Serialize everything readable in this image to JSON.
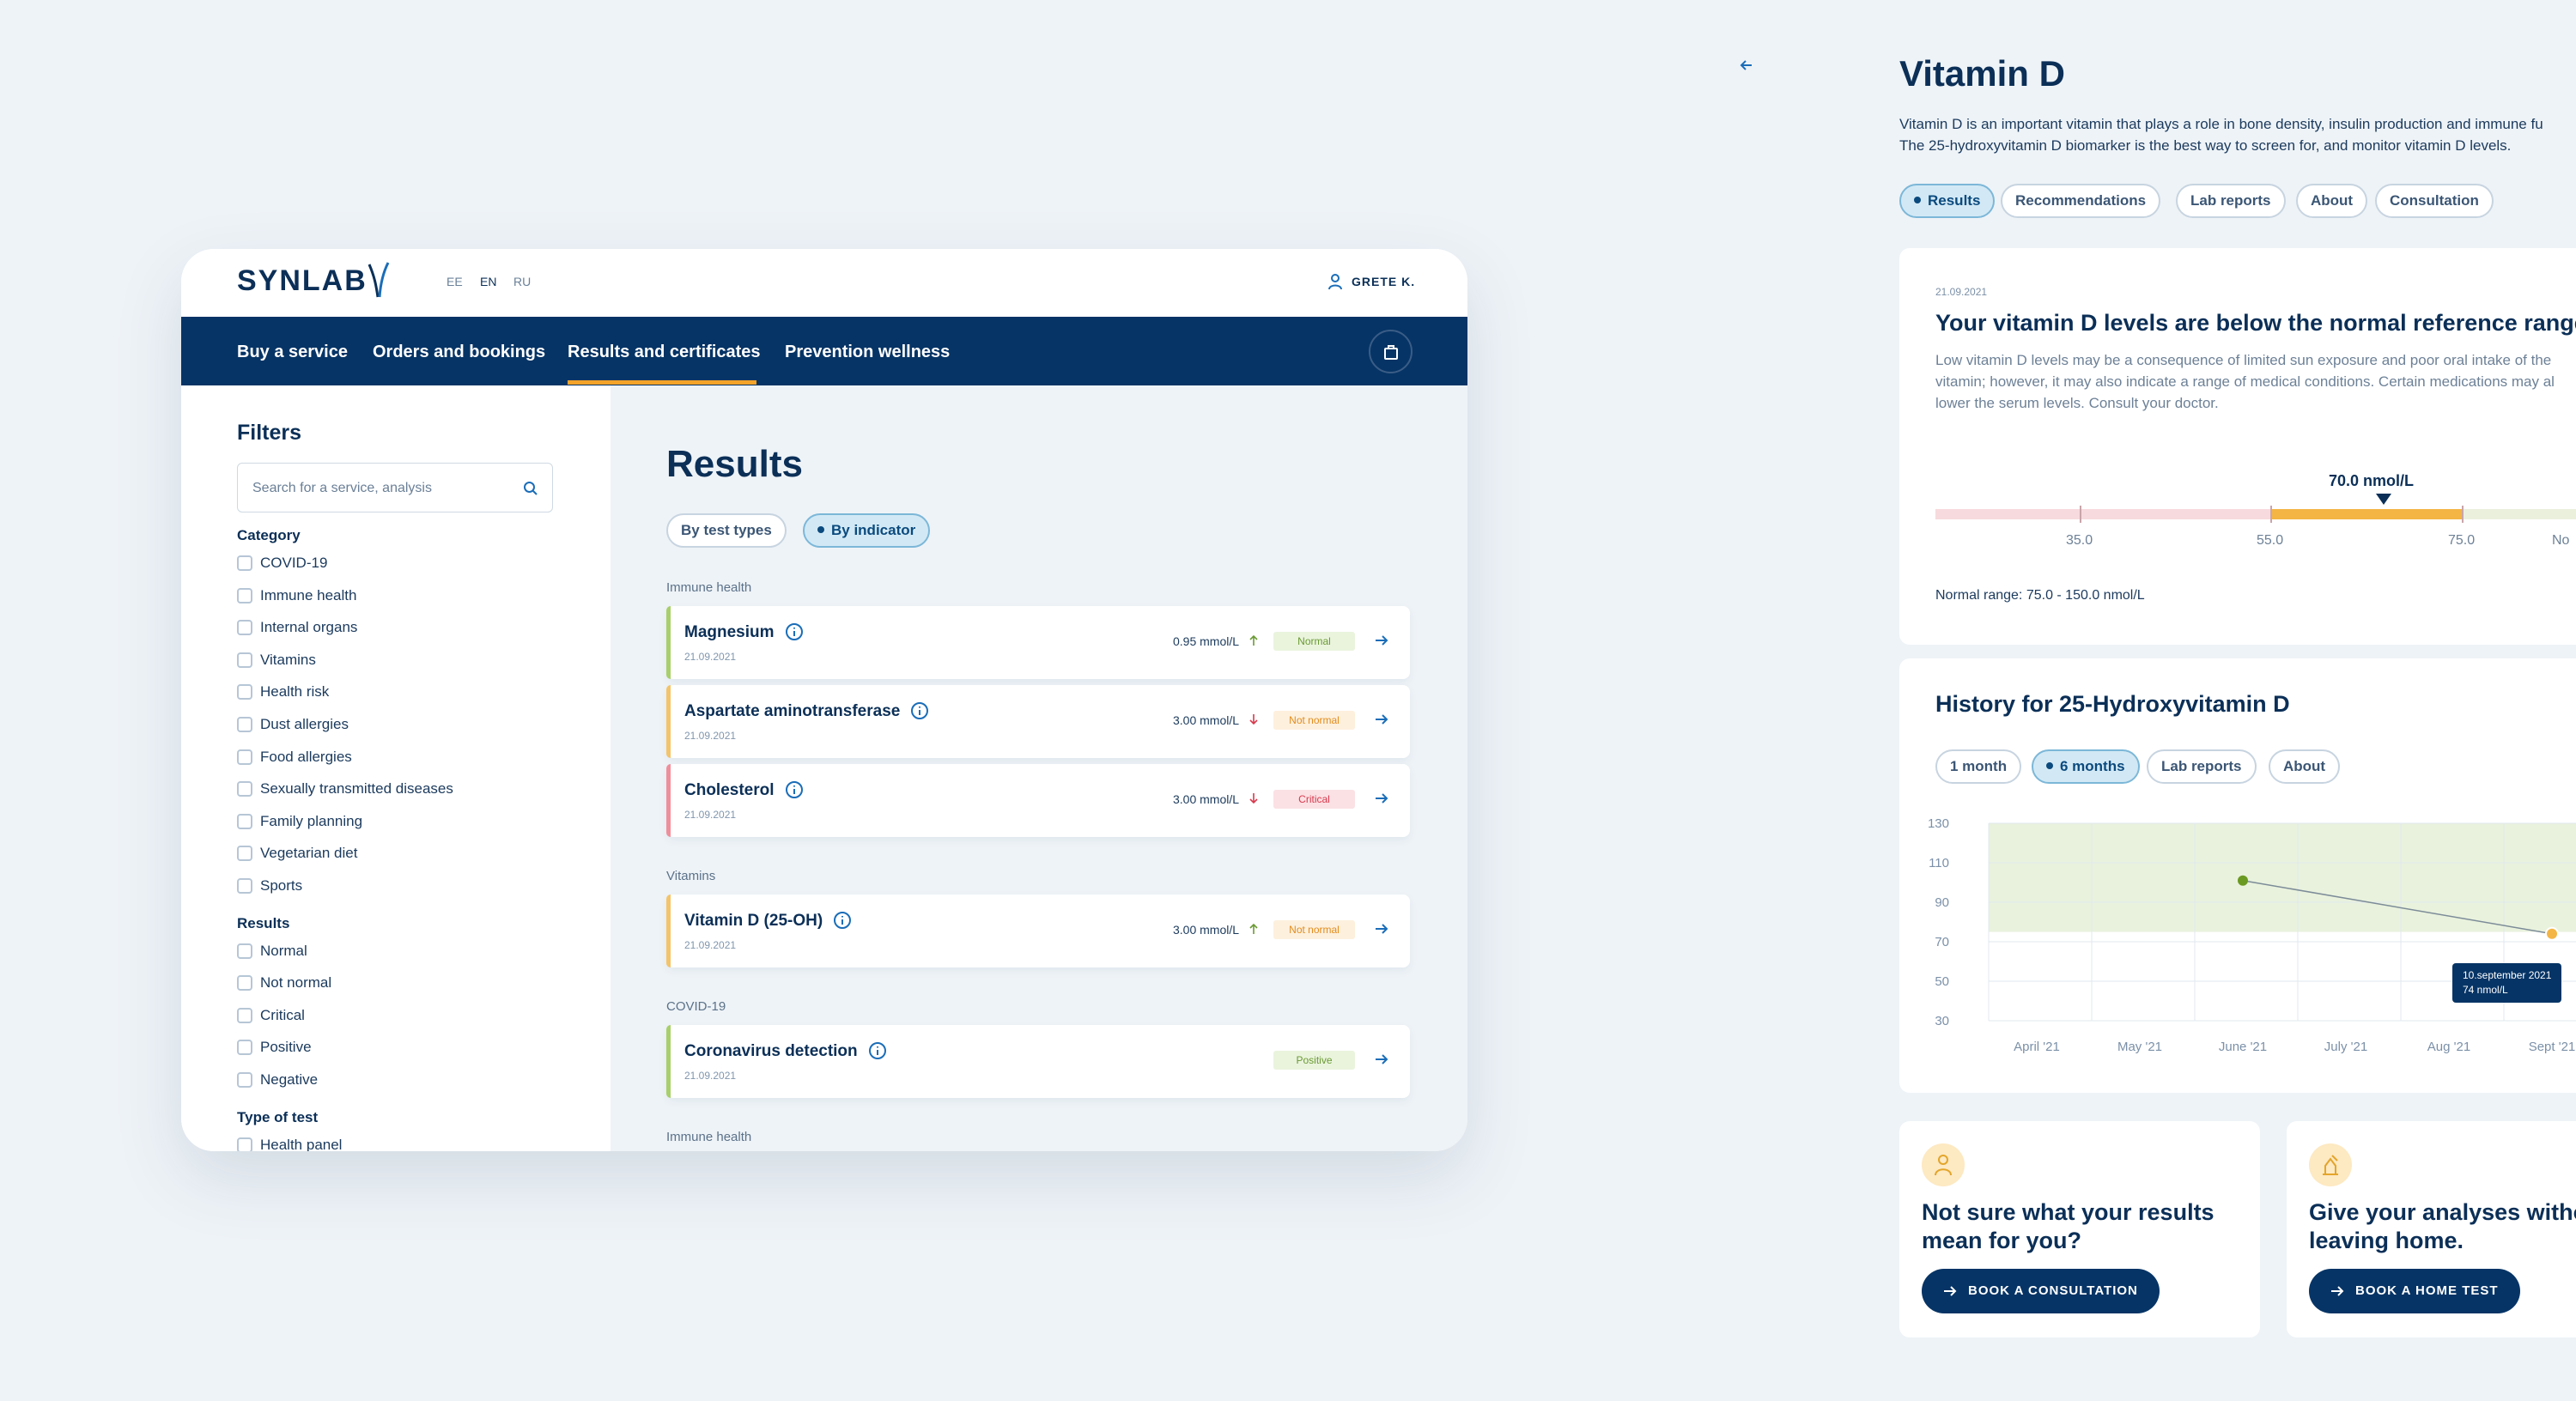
{
  "colors": {
    "brand": "#063466",
    "accent": "#f4a32a",
    "normal": "#6b9a34",
    "not_normal": "#e38c1c",
    "critical": "#d8394d",
    "positive": "#6b9a34"
  },
  "header": {
    "logo": "SYNLAB",
    "languages": [
      "EE",
      "EN",
      "RU"
    ],
    "active_language": "EN",
    "user": "GRETE K."
  },
  "nav": [
    "Buy a service",
    "Orders and bookings",
    "Results and certificates",
    "Prevention wellness"
  ],
  "nav_active": "Results and certificates",
  "filters": {
    "title": "Filters",
    "search_placeholder": "Search for a service, analysis",
    "category_title": "Category",
    "categories": [
      "COVID-19",
      "Immune health",
      "Internal organs",
      "Vitamins",
      "Health risk",
      "Dust allergies",
      "Food allergies",
      "Sexually transmitted diseases",
      "Family planning",
      "Vegetarian diet",
      "Sports"
    ],
    "results_title": "Results",
    "results": [
      "Normal",
      "Not normal",
      "Critical",
      "Positive",
      "Negative"
    ],
    "type_title": "Type of test",
    "types": [
      "Health panel"
    ]
  },
  "results": {
    "title": "Results",
    "tabs": [
      "By test types",
      "By indicator"
    ],
    "active_tab": "By indicator",
    "groups": [
      {
        "name": "Immune health",
        "items": [
          {
            "name": "Magnesium",
            "date": "21.09.2021",
            "value": "0.95 mmol/L",
            "trend": "up",
            "status": "Normal",
            "kind": "normal"
          },
          {
            "name": "Aspartate aminotransferase",
            "date": "21.09.2021",
            "value": "3.00 mmol/L",
            "trend": "down",
            "status": "Not normal",
            "kind": "notnormal"
          },
          {
            "name": "Cholesterol",
            "date": "21.09.2021",
            "value": "3.00 mmol/L",
            "trend": "down",
            "status": "Critical",
            "kind": "critical"
          }
        ]
      },
      {
        "name": "Vitamins",
        "items": [
          {
            "name": "Vitamin D (25-OH)",
            "date": "21.09.2021",
            "value": "3.00 mmol/L",
            "trend": "up",
            "status": "Not normal",
            "kind": "notnormal"
          }
        ]
      },
      {
        "name": "COVID-19",
        "items": [
          {
            "name": "Coronavirus detection",
            "date": "21.09.2021",
            "value": "",
            "trend": "",
            "status": "Positive",
            "kind": "positive"
          }
        ]
      },
      {
        "name": "Immune health",
        "items": []
      }
    ]
  },
  "detail": {
    "title": "Vitamin D",
    "description": [
      "Vitamin D is an important vitamin that plays a role in bone density, insulin production and immune fu",
      "The 25-hydroxyvitamin D biomarker is the best way to screen for, and monitor vitamin D levels."
    ],
    "tabs": [
      "Results",
      "Recommendations",
      "Lab reports",
      "About",
      "Consultation"
    ],
    "active_tab": "Results",
    "result_date": "21.09.2021",
    "result_heading": "Your vitamin D levels are below the normal reference range",
    "result_text": [
      "Low vitamin D levels may be a consequence of limited sun exposure and poor oral intake of the",
      "vitamin; however, it may also indicate a range of medical conditions. Certain medications may al",
      "lower the serum levels. Consult your doctor."
    ],
    "marker_label": "70.0 nmol/L",
    "marker_value": 70,
    "range_ticks": [
      "35.0",
      "55.0",
      "75.0",
      "No"
    ],
    "normal_range": "Normal range: 75.0 - 150.0 nmol/L",
    "history_title": "History for 25-Hydroxyvitamin D",
    "history_tabs": [
      "1 month",
      "6 months",
      "Lab reports",
      "About"
    ],
    "history_active": "6 months",
    "tooltip": [
      "10.september 2021",
      "74 nmol/L"
    ]
  },
  "chart_data": {
    "type": "line",
    "title": "History for 25-Hydroxyvitamin D",
    "x": [
      "April '21",
      "May '21",
      "June '21",
      "July '21",
      "Aug '21",
      "Sept '21"
    ],
    "y_ticks": [
      130,
      110,
      90,
      70,
      50,
      30
    ],
    "ylim": [
      30,
      130
    ],
    "normal_band": [
      75,
      150
    ],
    "series": [
      {
        "points": [
          {
            "x": "June '21",
            "y": 101
          },
          {
            "x": "Sept '21",
            "y": 74
          }
        ]
      }
    ],
    "grid": true
  },
  "cta": [
    {
      "heading": [
        "Not sure what your results",
        "mean for you?"
      ],
      "button": "BOOK A CONSULTATION",
      "icon": "doctor-icon"
    },
    {
      "heading": [
        "Give your analyses witho",
        "leaving home."
      ],
      "button": "BOOK A HOME TEST",
      "icon": "home-test-icon"
    }
  ]
}
